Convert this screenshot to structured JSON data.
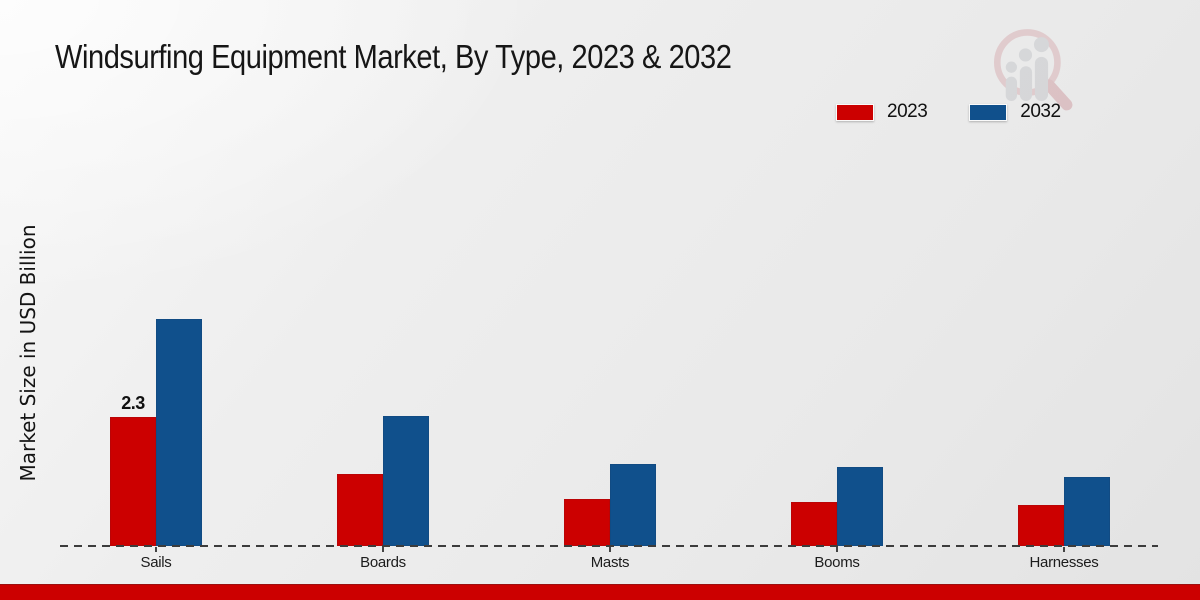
{
  "page": {
    "title": "Windsurfing Equipment Market, By Type, 2023 & 2032"
  },
  "legend": {
    "items": [
      {
        "label": "2023",
        "color": "#cc0000"
      },
      {
        "label": "2032",
        "color": "#10508c"
      }
    ]
  },
  "chart_data": {
    "type": "bar",
    "title": "Windsurfing Equipment Market, By Type, 2023 & 2032",
    "xlabel": "",
    "ylabel": "Market Size in USD Billion",
    "categories": [
      "Sails",
      "Boards",
      "Masts",
      "Booms",
      "Harnesses"
    ],
    "series": [
      {
        "name": "2023",
        "color": "#cc0000",
        "values": [
          2.3,
          1.28,
          0.84,
          0.78,
          0.73
        ]
      },
      {
        "name": "2032",
        "color": "#10508c",
        "values": [
          4.05,
          2.32,
          1.46,
          1.41,
          1.23
        ]
      }
    ],
    "data_labels": [
      {
        "series": "2023",
        "category": "Sails",
        "text": "2.3"
      }
    ],
    "ylim": [
      0,
      4.5
    ],
    "grid": false,
    "legend_position": "top-right",
    "axis_style": "dashed-baseline-only"
  },
  "watermark": {
    "icon": "bar-chart-magnifier-logo"
  },
  "footer": {
    "color": "#cc0000"
  }
}
